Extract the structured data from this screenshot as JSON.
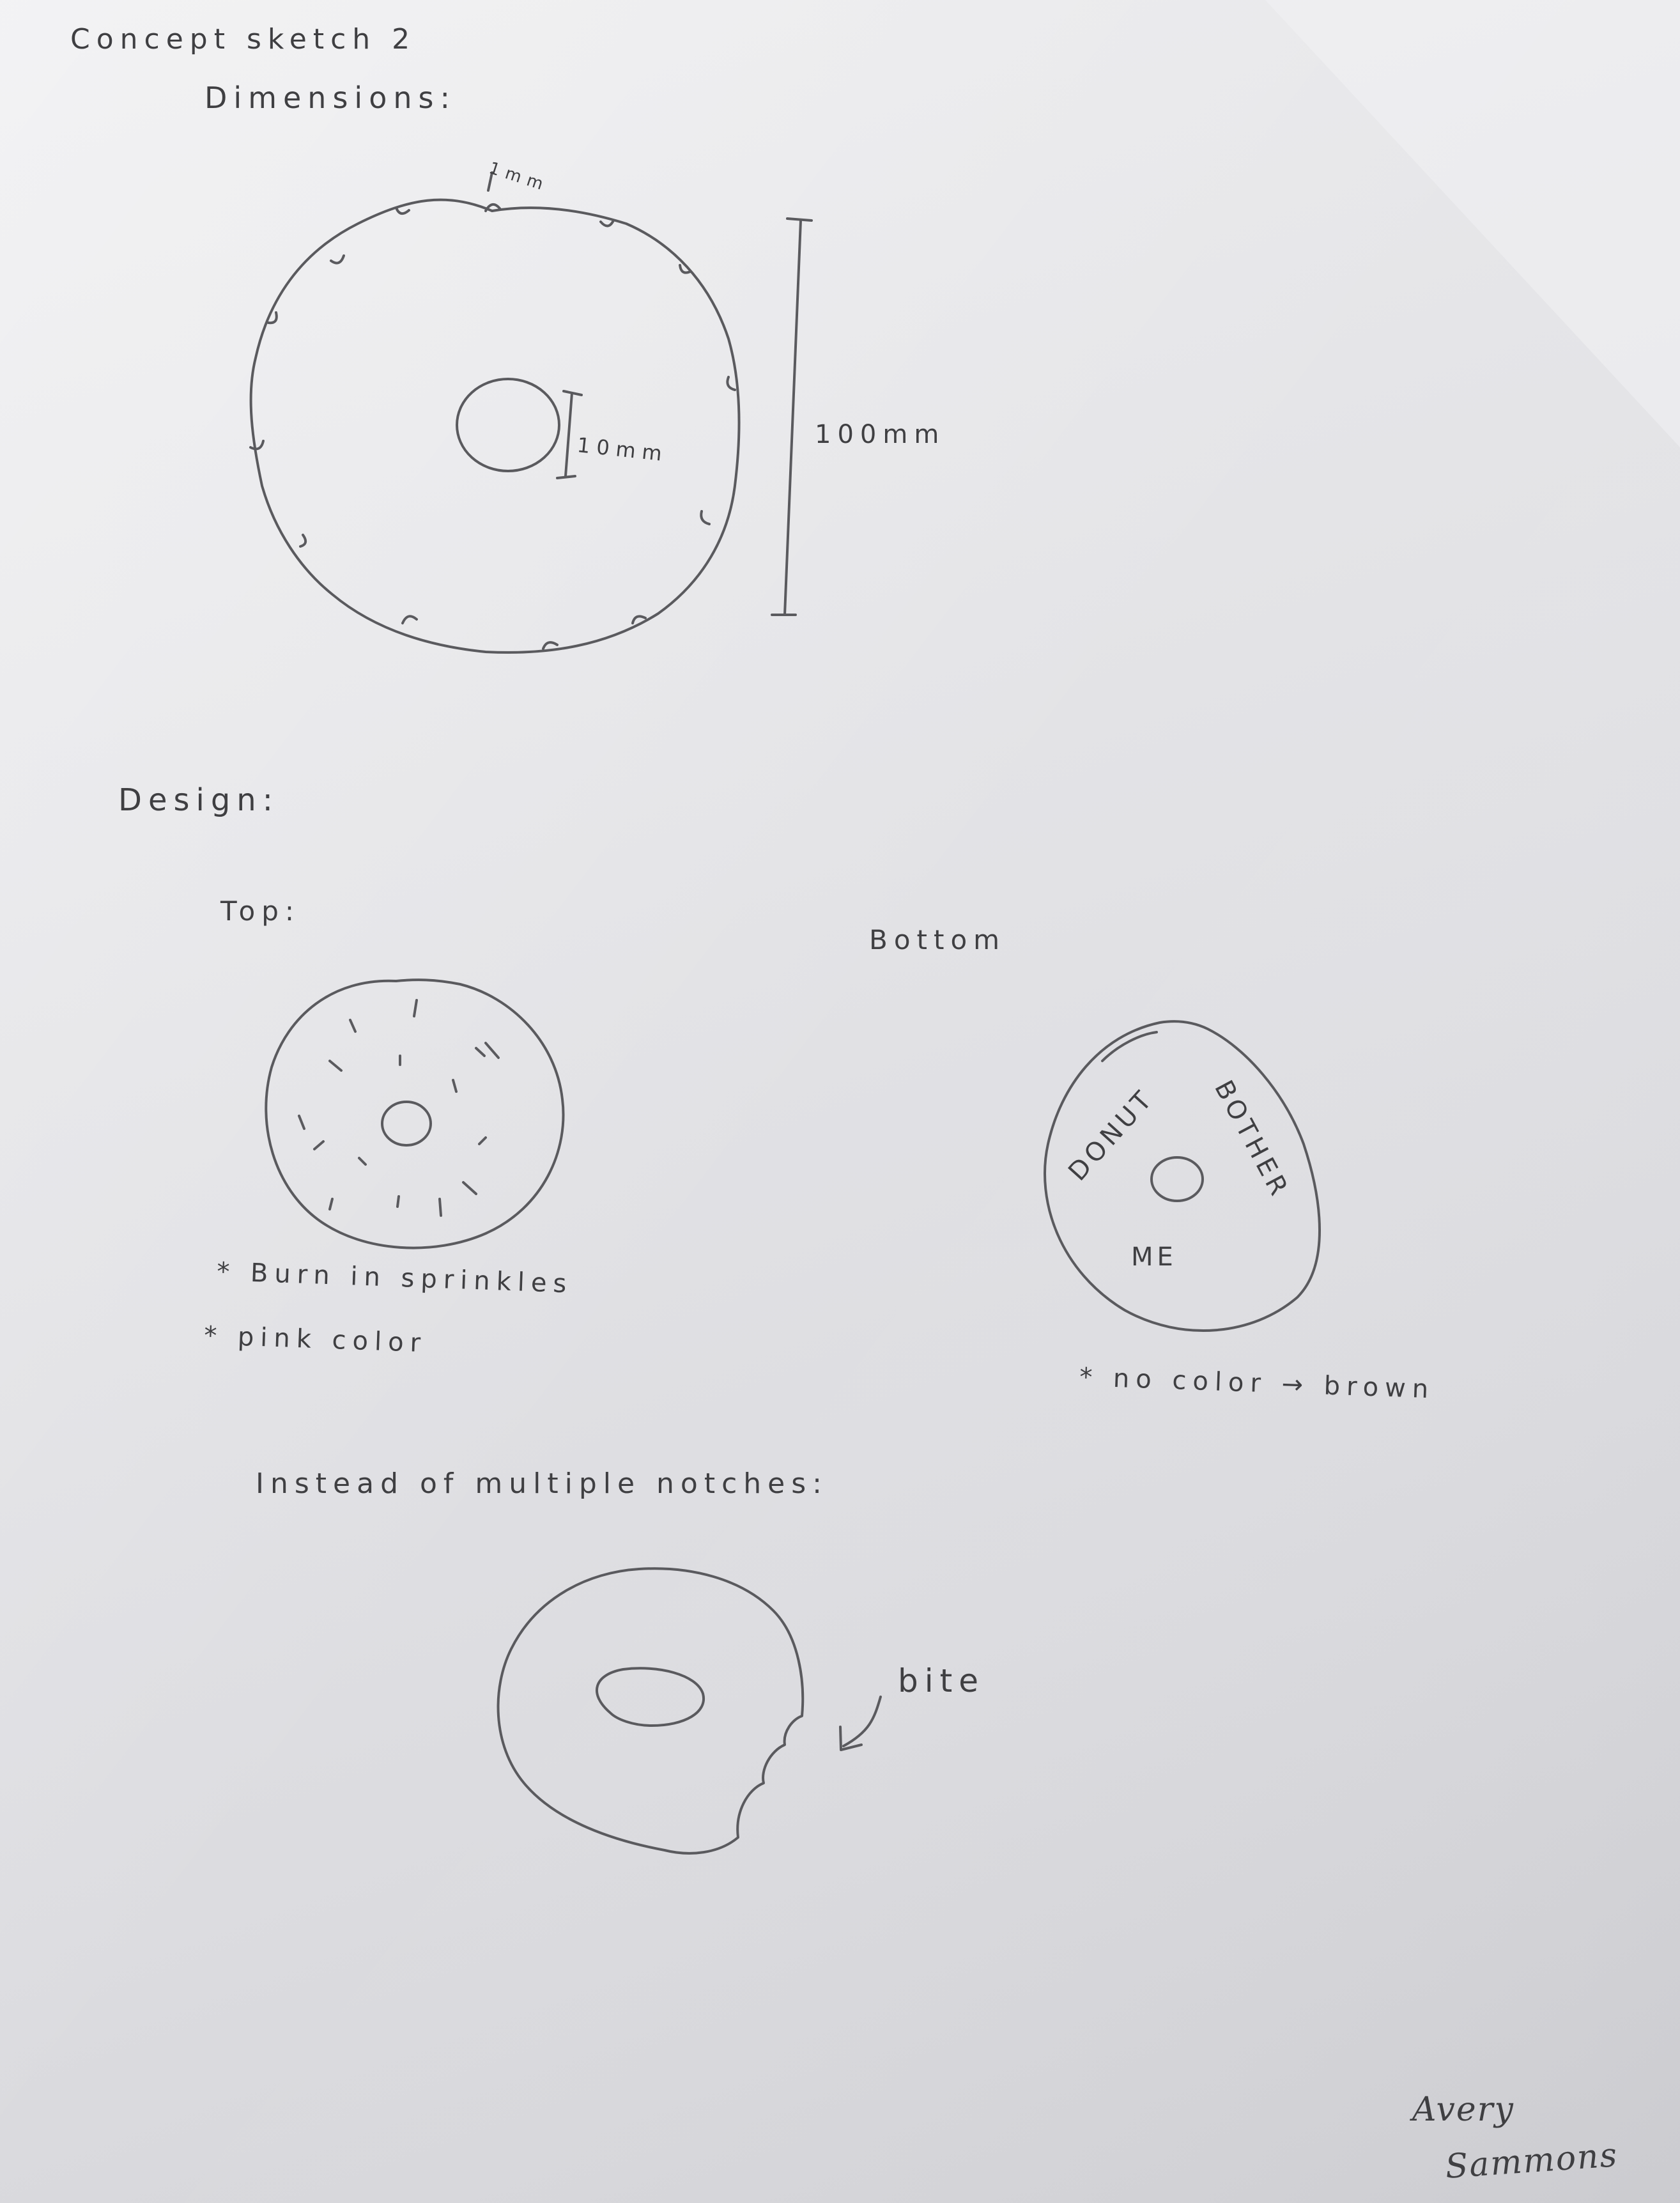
{
  "header": {
    "title": "Concept sketch 2",
    "dimensions_label": "Dimensions:"
  },
  "dimensions": {
    "notch_label": "1mm",
    "hole_label": "10mm",
    "diameter_label": "100mm"
  },
  "design": {
    "heading": "Design:",
    "top_label": "Top:",
    "bottom_label": "Bottom",
    "top_notes": [
      "* Burn in sprinkles",
      "* pink color"
    ],
    "bottom_text": {
      "left": "DONUT",
      "right": "BOTHER",
      "lower": "ME"
    },
    "bottom_note": "* no color → brown"
  },
  "alternative": {
    "heading": "Instead of multiple notches:",
    "bite_label": "bite"
  },
  "signature": {
    "first": "Avery",
    "last": "Sammons"
  }
}
